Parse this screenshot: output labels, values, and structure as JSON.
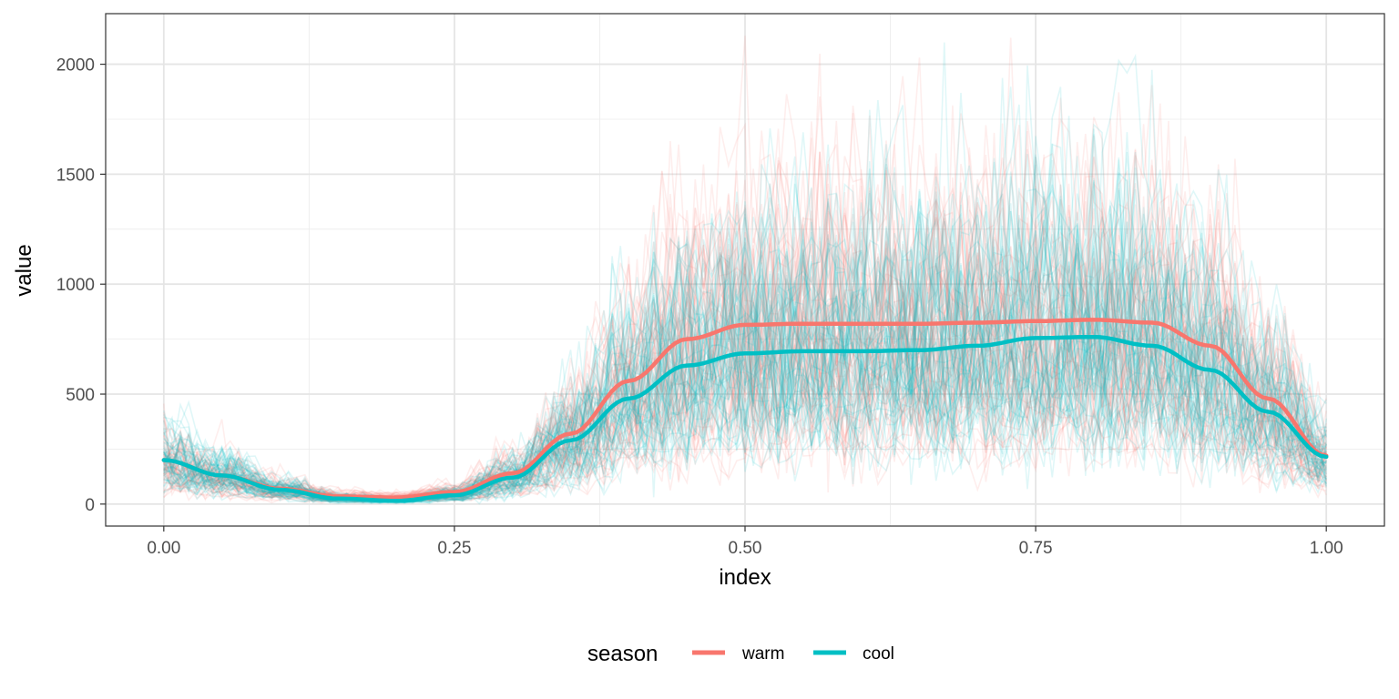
{
  "chart_data": {
    "type": "line",
    "xlabel": "index",
    "ylabel": "value",
    "xlim": [
      -0.05,
      1.05
    ],
    "ylim": [
      -100,
      2230
    ],
    "x_ticks": [
      0.0,
      0.25,
      0.5,
      0.75,
      1.0
    ],
    "x_tick_labels": [
      "0.00",
      "0.25",
      "0.50",
      "0.75",
      "1.00"
    ],
    "y_ticks": [
      0,
      500,
      1000,
      1500,
      2000
    ],
    "y_tick_labels": [
      "0",
      "500",
      "1000",
      "1500",
      "2000"
    ],
    "grid": true,
    "legend": {
      "title": "season",
      "position": "bottom",
      "entries": [
        {
          "label": "warm",
          "color": "#F8766D"
        },
        {
          "label": "cool",
          "color": "#00BFC4"
        }
      ]
    },
    "series": [
      {
        "name": "warm",
        "color": "#F8766D",
        "x": [
          0.0,
          0.05,
          0.1,
          0.15,
          0.2,
          0.25,
          0.3,
          0.35,
          0.4,
          0.45,
          0.5,
          0.55,
          0.6,
          0.65,
          0.7,
          0.75,
          0.8,
          0.85,
          0.9,
          0.95,
          1.0
        ],
        "values": [
          200,
          130,
          70,
          35,
          30,
          55,
          140,
          320,
          560,
          750,
          815,
          820,
          820,
          820,
          825,
          832,
          838,
          825,
          720,
          480,
          220
        ]
      },
      {
        "name": "cool",
        "color": "#00BFC4",
        "x": [
          0.0,
          0.05,
          0.1,
          0.15,
          0.2,
          0.25,
          0.3,
          0.35,
          0.4,
          0.45,
          0.5,
          0.55,
          0.6,
          0.65,
          0.7,
          0.75,
          0.8,
          0.85,
          0.9,
          0.95,
          1.0
        ],
        "values": [
          200,
          130,
          65,
          25,
          15,
          40,
          120,
          290,
          480,
          630,
          685,
          695,
          695,
          700,
          720,
          755,
          760,
          720,
          610,
          420,
          215
        ]
      }
    ]
  }
}
